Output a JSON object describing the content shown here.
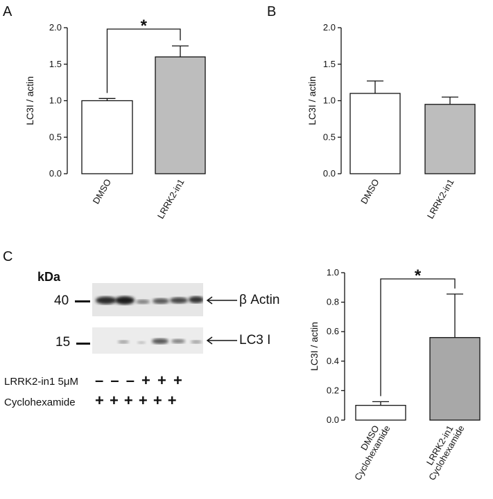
{
  "panels": {
    "A": "A",
    "B": "B",
    "C": "C"
  },
  "chart_data": [
    {
      "id": "A",
      "type": "bar",
      "categories": [
        "DMSO",
        "LRRK2-in1"
      ],
      "values": [
        1.0,
        1.6
      ],
      "errors": [
        0.03,
        0.15
      ],
      "colors": [
        "#ffffff",
        "#bdbdbd"
      ],
      "ylabel": "LC3I / actin",
      "ylim": [
        0,
        2.0
      ],
      "yticks": [
        "0.0",
        "0.5",
        "1.0",
        "1.5",
        "2.0"
      ],
      "significance": "*"
    },
    {
      "id": "B",
      "type": "bar",
      "categories": [
        "DMSO",
        "LRRK2-in1"
      ],
      "values": [
        1.1,
        0.95
      ],
      "errors": [
        0.17,
        0.1
      ],
      "colors": [
        "#ffffff",
        "#bdbdbd"
      ],
      "ylabel": "LC3I / actin",
      "ylim": [
        0,
        2.0
      ],
      "yticks": [
        "0.0",
        "0.5",
        "1.0",
        "1.5",
        "2.0"
      ]
    },
    {
      "id": "C",
      "type": "bar",
      "categories": [
        "DMSO\nCyclohexamide",
        "LRRK2-in1\nCyclohexamide"
      ],
      "category_lines": [
        [
          "DMSO",
          "Cyclohexamide"
        ],
        [
          "LRRK2-in1",
          "Cyclohexamide"
        ]
      ],
      "values": [
        0.1,
        0.56
      ],
      "errors": [
        0.025,
        0.295
      ],
      "colors": [
        "#ffffff",
        "#a8a8a8"
      ],
      "ylabel": "LC3I / actin",
      "ylim": [
        0,
        1.0
      ],
      "yticks": [
        "0.0",
        "0.2",
        "0.4",
        "0.6",
        "0.8",
        "1.0"
      ],
      "significance": "*"
    }
  ],
  "blot": {
    "kda_label": "kDa",
    "marker_40": "40",
    "marker_15": "15",
    "band_actin": "β Actin",
    "band_lc3": "LC3 I",
    "treatment_1": "LRRK2-in1 5μM",
    "treatment_1_marks": "– – – + + +",
    "treatment_2": "Cyclohexamide",
    "treatment_2_marks": "+ + + + + +"
  }
}
